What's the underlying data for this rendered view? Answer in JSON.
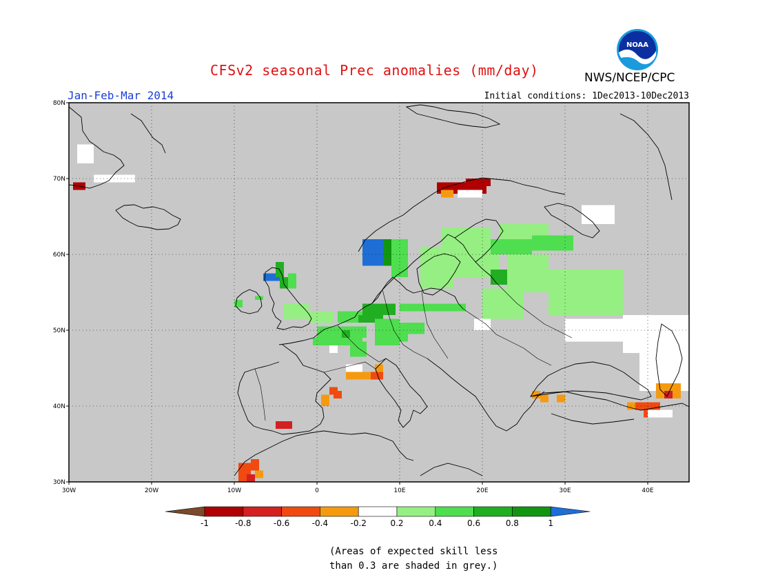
{
  "title": "CFSv2 seasonal Prec anomalies (mm/day)",
  "period": "Jan-Feb-Mar 2014",
  "initial_conditions": "Initial conditions: 1Dec2013-10Dec2013",
  "agency": "NWS/NCEP/CPC",
  "logo": {
    "text": "NOAA",
    "icon": "noaa-logo-icon"
  },
  "colors": {
    "grey_mask": "#c8c8c8",
    "neutral": "#ffffff",
    "border": "#000000"
  },
  "map": {
    "lon_range": [
      -30,
      45
    ],
    "lat_range": [
      30,
      80
    ],
    "lon_ticks": [
      {
        "value": -30,
        "label": "30W"
      },
      {
        "value": -20,
        "label": "20W"
      },
      {
        "value": -10,
        "label": "10W"
      },
      {
        "value": 0,
        "label": "0"
      },
      {
        "value": 10,
        "label": "10E"
      },
      {
        "value": 20,
        "label": "20E"
      },
      {
        "value": 30,
        "label": "30E"
      },
      {
        "value": 40,
        "label": "40E"
      }
    ],
    "lat_ticks": [
      {
        "value": 30,
        "label": "30N"
      },
      {
        "value": 40,
        "label": "40N"
      },
      {
        "value": 50,
        "label": "50N"
      },
      {
        "value": 60,
        "label": "60N"
      },
      {
        "value": 70,
        "label": "70N"
      },
      {
        "value": 80,
        "label": "80N"
      }
    ]
  },
  "chart_data": {
    "type": "heatmap",
    "title": "CFSv2 seasonal Prec anomalies (mm/day)",
    "x_range": [
      -30,
      45
    ],
    "y_range": [
      30,
      80
    ],
    "grid": "dotted",
    "cells": [
      {
        "lon": -29.5,
        "lat": 68.5,
        "w": 1.5,
        "h": 1,
        "value": -0.9
      },
      {
        "lon": -27,
        "lat": 69.5,
        "w": 5,
        "h": 1,
        "value": 0
      },
      {
        "lon": -29,
        "lat": 72,
        "w": 2,
        "h": 2.5,
        "value": 0
      },
      {
        "lon": -6.5,
        "lat": 56.5,
        "w": 2,
        "h": 1,
        "value": 1.1
      },
      {
        "lon": -5,
        "lat": 57,
        "w": 1,
        "h": 2,
        "value": 0.7
      },
      {
        "lon": -4.5,
        "lat": 55.5,
        "w": 1,
        "h": 1.5,
        "value": 0.6
      },
      {
        "lon": -3.5,
        "lat": 55.5,
        "w": 1,
        "h": 2,
        "value": 0.5
      },
      {
        "lon": -10,
        "lat": 53,
        "w": 1,
        "h": 1,
        "value": 0.5
      },
      {
        "lon": -7.5,
        "lat": 54,
        "w": 1,
        "h": 0.5,
        "value": 0.5
      },
      {
        "lon": -4,
        "lat": 51.5,
        "w": 3,
        "h": 2,
        "value": 0.3
      },
      {
        "lon": -1,
        "lat": 51,
        "w": 3,
        "h": 1.5,
        "value": 0.3
      },
      {
        "lon": 2.5,
        "lat": 51,
        "w": 3,
        "h": 1.5,
        "value": 0.5
      },
      {
        "lon": 0,
        "lat": 49,
        "w": 6,
        "h": 1.5,
        "value": 0.5
      },
      {
        "lon": -0.5,
        "lat": 48,
        "w": 6,
        "h": 1,
        "value": 0.5
      },
      {
        "lon": 4,
        "lat": 46.5,
        "w": 2,
        "h": 2,
        "value": 0.5
      },
      {
        "lon": 1.5,
        "lat": 47,
        "w": 1,
        "h": 1,
        "value": 0
      },
      {
        "lon": 3,
        "lat": 49,
        "w": 1,
        "h": 1,
        "value": 0.7
      },
      {
        "lon": 5,
        "lat": 51,
        "w": 3,
        "h": 1,
        "value": 0.7
      },
      {
        "lon": 5.5,
        "lat": 52,
        "w": 4,
        "h": 1.5,
        "value": 0.6
      },
      {
        "lon": 7,
        "lat": 48,
        "w": 3,
        "h": 3.5,
        "value": 0.5
      },
      {
        "lon": 9,
        "lat": 49.5,
        "w": 4,
        "h": 1.5,
        "value": 0.5
      },
      {
        "lon": 10,
        "lat": 52.5,
        "w": 8,
        "h": 1,
        "value": 0.5
      },
      {
        "lon": 5.5,
        "lat": 58.5,
        "w": 3,
        "h": 3.5,
        "value": 1.1
      },
      {
        "lon": 8,
        "lat": 58.5,
        "w": 1.5,
        "h": 3.5,
        "value": 0.8
      },
      {
        "lon": 9,
        "lat": 57,
        "w": 2,
        "h": 5,
        "value": 0.5
      },
      {
        "lon": 12.5,
        "lat": 55.5,
        "w": 4,
        "h": 5.5,
        "value": 0.3
      },
      {
        "lon": 16,
        "lat": 57,
        "w": 6,
        "h": 4,
        "value": 0.3
      },
      {
        "lon": 15,
        "lat": 61,
        "w": 6,
        "h": 2.5,
        "value": 0.3
      },
      {
        "lon": 21,
        "lat": 60,
        "w": 5,
        "h": 2,
        "value": 0.5
      },
      {
        "lon": 22,
        "lat": 62,
        "w": 6,
        "h": 2,
        "value": 0.3
      },
      {
        "lon": 26,
        "lat": 60.5,
        "w": 5,
        "h": 2,
        "value": 0.5
      },
      {
        "lon": 23,
        "lat": 55,
        "w": 5,
        "h": 5,
        "value": 0.3
      },
      {
        "lon": 21,
        "lat": 56,
        "w": 2,
        "h": 2,
        "value": 0.7
      },
      {
        "lon": 28,
        "lat": 52,
        "w": 9,
        "h": 6,
        "value": 0.3
      },
      {
        "lon": 20,
        "lat": 51.5,
        "w": 5,
        "h": 4,
        "value": 0.3
      },
      {
        "lon": 19,
        "lat": 50,
        "w": 2,
        "h": 1.5,
        "value": 0
      },
      {
        "lon": 7,
        "lat": 48.5,
        "w": 4,
        "h": 1,
        "value": 0.4
      },
      {
        "lon": 14.5,
        "lat": 68,
        "w": 6,
        "h": 1.5,
        "value": -0.9
      },
      {
        "lon": 18,
        "lat": 69,
        "w": 3,
        "h": 1,
        "value": -0.9
      },
      {
        "lon": 15,
        "lat": 67.5,
        "w": 1.5,
        "h": 1,
        "value": -0.3
      },
      {
        "lon": 17,
        "lat": 67.5,
        "w": 3,
        "h": 1,
        "value": 0
      },
      {
        "lon": 32,
        "lat": 64,
        "w": 4,
        "h": 2.5,
        "value": 0
      },
      {
        "lon": 30,
        "lat": 48.5,
        "w": 7,
        "h": 3,
        "value": 0
      },
      {
        "lon": 37,
        "lat": 47,
        "w": 8,
        "h": 5,
        "value": 0
      },
      {
        "lon": 39,
        "lat": 42,
        "w": 6,
        "h": 5,
        "value": 0
      },
      {
        "lon": 3.5,
        "lat": 43.5,
        "w": 3,
        "h": 1,
        "value": -0.3
      },
      {
        "lon": 6.5,
        "lat": 43.5,
        "w": 1.5,
        "h": 1,
        "value": -0.6
      },
      {
        "lon": 7,
        "lat": 44.5,
        "w": 1,
        "h": 1,
        "value": -0.3
      },
      {
        "lon": 3.5,
        "lat": 44.5,
        "w": 2,
        "h": 1,
        "value": 0
      },
      {
        "lon": 1.5,
        "lat": 41.5,
        "w": 1,
        "h": 1,
        "value": -0.5
      },
      {
        "lon": 0.5,
        "lat": 40,
        "w": 1,
        "h": 1.5,
        "value": -0.3
      },
      {
        "lon": 2,
        "lat": 41,
        "w": 1,
        "h": 1,
        "value": -0.6
      },
      {
        "lon": -5,
        "lat": 37,
        "w": 2,
        "h": 1,
        "value": -0.8
      },
      {
        "lon": -9.5,
        "lat": 30,
        "w": 1.5,
        "h": 2.5,
        "value": -0.6
      },
      {
        "lon": -8,
        "lat": 31.5,
        "w": 1,
        "h": 1.5,
        "value": -0.6
      },
      {
        "lon": -8.5,
        "lat": 30,
        "w": 1,
        "h": 1,
        "value": -0.8
      },
      {
        "lon": -7.5,
        "lat": 30.5,
        "w": 1,
        "h": 1,
        "value": -0.3
      },
      {
        "lon": 26,
        "lat": 41,
        "w": 1,
        "h": 1,
        "value": -0.3
      },
      {
        "lon": 27,
        "lat": 40.5,
        "w": 1,
        "h": 1,
        "value": -0.3
      },
      {
        "lon": 29,
        "lat": 40.5,
        "w": 1,
        "h": 1,
        "value": -0.3
      },
      {
        "lon": 41,
        "lat": 41,
        "w": 3,
        "h": 2,
        "value": -0.3
      },
      {
        "lon": 38.5,
        "lat": 39.5,
        "w": 3,
        "h": 1,
        "value": -0.6
      },
      {
        "lon": 37.5,
        "lat": 39.5,
        "w": 1,
        "h": 1,
        "value": -0.3
      },
      {
        "lon": 39.5,
        "lat": 38.5,
        "w": 2,
        "h": 1,
        "value": -0.5
      },
      {
        "lon": 42,
        "lat": 41,
        "w": 1,
        "h": 1,
        "value": -0.8
      },
      {
        "lon": 40,
        "lat": 38.5,
        "w": 3,
        "h": 1,
        "value": 0
      }
    ]
  },
  "colorbar": {
    "tick_labels": [
      "-1",
      "-0.8",
      "-0.6",
      "-0.4",
      "-0.2",
      "0.2",
      "0.4",
      "0.6",
      "0.8",
      "1"
    ],
    "bins": [
      {
        "color": "#7a4a2a"
      },
      {
        "color": "#b00000"
      },
      {
        "color": "#d42020"
      },
      {
        "color": "#f04a10"
      },
      {
        "color": "#f59a10"
      },
      {
        "color": "#ffffff"
      },
      {
        "color": "#96ef82"
      },
      {
        "color": "#4fde4f"
      },
      {
        "color": "#22ae22"
      },
      {
        "color": "#129612"
      },
      {
        "color": "#1e6ed6"
      }
    ]
  },
  "note": {
    "line1": "(Areas of expected skill less",
    "line2": "than 0.3 are shaded in grey.)"
  }
}
